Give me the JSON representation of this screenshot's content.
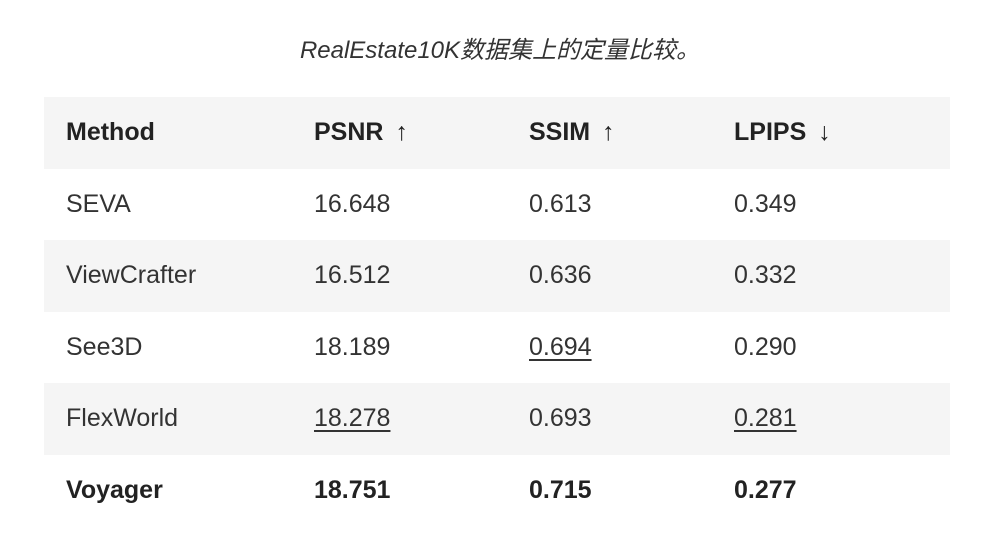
{
  "caption": "RealEstate10K数据集上的定量比较。",
  "table": {
    "headers": [
      {
        "label": "Method",
        "arrow": ""
      },
      {
        "label": "PSNR",
        "arrow": "↑"
      },
      {
        "label": "SSIM",
        "arrow": "↑"
      },
      {
        "label": "LPIPS",
        "arrow": "↓"
      }
    ],
    "rows": [
      {
        "method": "SEVA",
        "psnr": "16.648",
        "ssim": "0.613",
        "lpips": "0.349"
      },
      {
        "method": "ViewCrafter",
        "psnr": "16.512",
        "ssim": "0.636",
        "lpips": "0.332"
      },
      {
        "method": "See3D",
        "psnr": "18.189",
        "ssim": "0.694",
        "lpips": "0.290",
        "underlined": [
          "ssim"
        ]
      },
      {
        "method": "FlexWorld",
        "psnr": "18.278",
        "ssim": "0.693",
        "lpips": "0.281",
        "underlined": [
          "psnr",
          "lpips"
        ]
      },
      {
        "method": "Voyager",
        "psnr": "18.751",
        "ssim": "0.715",
        "lpips": "0.277",
        "bold": true
      }
    ]
  }
}
